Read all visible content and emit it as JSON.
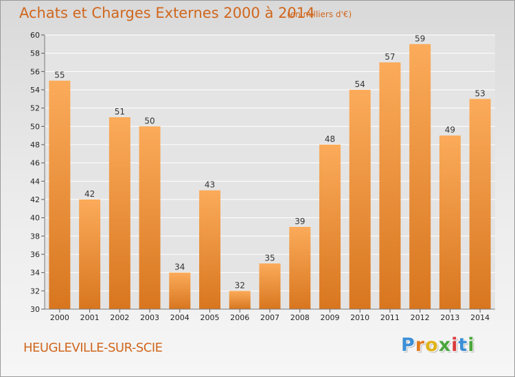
{
  "header": {
    "title": "Achats et Charges Externes 2000 à 2014",
    "subtitle": "(en milliers d'€)"
  },
  "footer": {
    "place": "HEUGLEVILLE-SUR-SCIE",
    "logo_letters": [
      "P",
      "r",
      "o",
      "x",
      "i",
      "t",
      "i"
    ],
    "logo_colors": [
      "#3b8fd6",
      "#e07a1f",
      "#e0b31a",
      "#4aa63c",
      "#d93a3a",
      "#3b8fd6",
      "#4aa63c"
    ]
  },
  "colors": {
    "bar_light": "#fbab5a",
    "bar_dark": "#d8761f",
    "title": "#d0661c",
    "grid": "#ffffff",
    "axis_text": "#222222"
  },
  "chart_data": {
    "type": "bar",
    "title": "Achats et Charges Externes 2000 à 2014",
    "subtitle": "(en milliers d'€)",
    "categories": [
      "2000",
      "2001",
      "2002",
      "2003",
      "2004",
      "2005",
      "2006",
      "2007",
      "2008",
      "2009",
      "2010",
      "2011",
      "2012",
      "2013",
      "2014"
    ],
    "values": [
      55,
      42,
      51,
      50,
      34,
      43,
      32,
      35,
      39,
      48,
      54,
      57,
      59,
      49,
      53
    ],
    "ylim": [
      30,
      60
    ],
    "yticks": [
      30,
      32,
      34,
      36,
      38,
      40,
      42,
      44,
      46,
      48,
      50,
      52,
      54,
      56,
      58,
      60
    ],
    "grid": true,
    "data_labels": true
  }
}
